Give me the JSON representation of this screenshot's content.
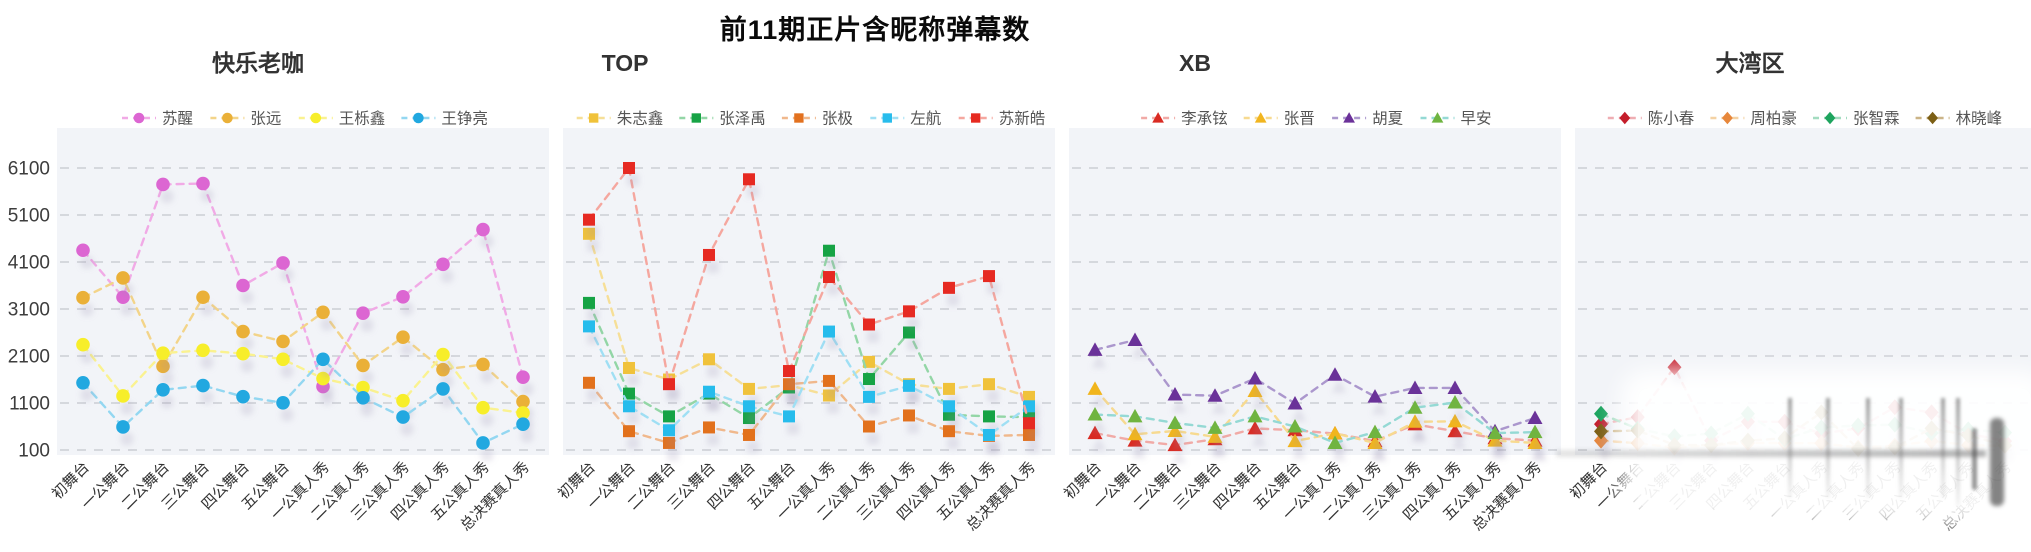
{
  "title": "前11期正片含昵称弹幕数",
  "y_axis": {
    "ticks": [
      6100,
      5100,
      4100,
      3100,
      2100,
      1100,
      100
    ],
    "min": 100,
    "max": 6100
  },
  "categories": [
    "初舞台",
    "一公舞台",
    "二公舞台",
    "三公舞台",
    "四公舞台",
    "五公舞台",
    "一公真人秀",
    "二公真人秀",
    "三公真人秀",
    "四公真人秀",
    "五公真人秀",
    "总决赛真人秀"
  ],
  "watermark": {
    "description": "blurred white overlay obscuring panel-4 x-axis labels"
  },
  "chart_data": [
    {
      "type": "line",
      "title": "快乐老咖",
      "marker": "circle",
      "ylim": [
        100,
        6100
      ],
      "grid": true,
      "legend_position": "top",
      "categories": [
        "初舞台",
        "一公舞台",
        "二公舞台",
        "三公舞台",
        "四公舞台",
        "五公舞台",
        "一公真人秀",
        "二公真人秀",
        "三公真人秀",
        "四公真人秀",
        "五公真人秀",
        "总决赛真人秀"
      ],
      "series": [
        {
          "name": "苏醒",
          "color": "#dc66d2",
          "line_color": "#f1aae6",
          "values": [
            4350,
            3350,
            5750,
            5770,
            3600,
            4080,
            1450,
            3010,
            3360,
            4050,
            4790,
            1650
          ]
        },
        {
          "name": "张远",
          "color": "#eab038",
          "line_color": "#f3d489",
          "values": [
            3340,
            3760,
            1880,
            3350,
            2620,
            2410,
            3030,
            1900,
            2500,
            1810,
            1920,
            1130
          ]
        },
        {
          "name": "王栎鑫",
          "color": "#f7ee2c",
          "line_color": "#faf290",
          "values": [
            2340,
            1250,
            2160,
            2220,
            2150,
            2030,
            1620,
            1430,
            1150,
            2130,
            1000,
            890
          ]
        },
        {
          "name": "王铮亮",
          "color": "#21a8e0",
          "line_color": "#93d7f1",
          "values": [
            1530,
            590,
            1380,
            1470,
            1235,
            1105,
            2030,
            1210,
            800,
            1400,
            250,
            650
          ]
        }
      ]
    },
    {
      "type": "line",
      "title": "TOP",
      "marker": "square",
      "ylim": [
        100,
        6100
      ],
      "grid": true,
      "legend_position": "top",
      "categories": [
        "初舞台",
        "一公舞台",
        "二公舞台",
        "三公舞台",
        "四公舞台",
        "五公舞台",
        "一公真人秀",
        "二公真人秀",
        "三公真人秀",
        "四公真人秀",
        "五公真人秀",
        "总决赛真人秀"
      ],
      "series": [
        {
          "name": "朱志鑫",
          "color": "#f0c23a",
          "line_color": "#f6df97",
          "values": [
            4700,
            1845,
            1600,
            2030,
            1400,
            1480,
            1260,
            1975,
            1500,
            1400,
            1500,
            1230
          ]
        },
        {
          "name": "张泽禹",
          "color": "#17a345",
          "line_color": "#93d6a6",
          "values": [
            3230,
            1300,
            815,
            1300,
            780,
            1430,
            4340,
            1610,
            2600,
            850,
            815,
            800
          ]
        },
        {
          "name": "张极",
          "color": "#e2711f",
          "line_color": "#f0b88c",
          "values": [
            1530,
            500,
            250,
            580,
            420,
            1500,
            1570,
            600,
            835,
            500,
            400,
            420
          ]
        },
        {
          "name": "左航",
          "color": "#28bcec",
          "line_color": "#9fdff4",
          "values": [
            2730,
            1030,
            520,
            1340,
            1030,
            815,
            2620,
            1230,
            1465,
            1030,
            420,
            1030
          ]
        },
        {
          "name": "苏新皓",
          "color": "#e62a20",
          "line_color": "#f5a79f",
          "values": [
            5000,
            6100,
            1500,
            4250,
            5860,
            1780,
            3780,
            2770,
            3050,
            3550,
            3800,
            670
          ]
        }
      ]
    },
    {
      "type": "line",
      "title": "XB",
      "marker": "triangle",
      "ylim": [
        100,
        6100
      ],
      "grid": true,
      "legend_position": "top",
      "categories": [
        "初舞台",
        "一公舞台",
        "二公舞台",
        "三公舞台",
        "四公舞台",
        "五公舞台",
        "一公真人秀",
        "二公真人秀",
        "三公真人秀",
        "四公真人秀",
        "五公真人秀",
        "总决赛真人秀"
      ],
      "series": [
        {
          "name": "李承铉",
          "color": "#d92b23",
          "line_color": "#f1aaa6",
          "values": [
            460,
            300,
            205,
            330,
            560,
            520,
            450,
            290,
            645,
            500,
            350,
            300
          ]
        },
        {
          "name": "张晋",
          "color": "#f1b51f",
          "line_color": "#f7da90",
          "values": [
            1400,
            435,
            505,
            380,
            1355,
            290,
            455,
            250,
            700,
            710,
            300,
            250
          ]
        },
        {
          "name": "胡夏",
          "color": "#6b3199",
          "line_color": "#ab97cd",
          "values": [
            2230,
            2440,
            1280,
            1255,
            1620,
            1090,
            1700,
            1235,
            1420,
            1420,
            500,
            780
          ]
        },
        {
          "name": "早安",
          "color": "#6fb440",
          "line_color": "#94d9d4",
          "values": [
            855,
            815,
            675,
            570,
            815,
            600,
            250,
            480,
            1000,
            1110,
            460,
            480
          ]
        }
      ]
    },
    {
      "type": "line",
      "title": "大湾区",
      "marker": "diamond",
      "ylim": [
        100,
        6100
      ],
      "grid": true,
      "legend_position": "top",
      "categories": [
        "初舞台",
        "一公舞台",
        "二公舞台",
        "三公舞台",
        "四公舞台",
        "五公舞台",
        "一公真人秀",
        "二公真人秀",
        "三公真人秀",
        "四公真人秀",
        "五公真人秀",
        "总决赛真人秀"
      ],
      "series": [
        {
          "name": "陈小春",
          "color": "#c41d2b",
          "line_color": "#efadb2",
          "values": [
            650,
            800,
            1860,
            300,
            700,
            700,
            450,
            560,
            1010,
            900,
            450,
            290
          ]
        },
        {
          "name": "周柏豪",
          "color": "#e7873b",
          "line_color": "#f4d2a4",
          "values": [
            300,
            245,
            150,
            200,
            250,
            245,
            245,
            150,
            190,
            290,
            205,
            185
          ]
        },
        {
          "name": "张智霖",
          "color": "#1ea45e",
          "line_color": "#a3dcc0",
          "values": [
            870,
            550,
            390,
            450,
            870,
            330,
            580,
            620,
            640,
            460,
            540,
            470
          ]
        },
        {
          "name": "林晓峰",
          "color": "#7c5f15",
          "line_color": "#cbb487",
          "values": [
            495,
            515,
            205,
            205,
            300,
            350,
            900,
            120,
            150,
            560,
            410,
            200
          ]
        }
      ]
    }
  ]
}
